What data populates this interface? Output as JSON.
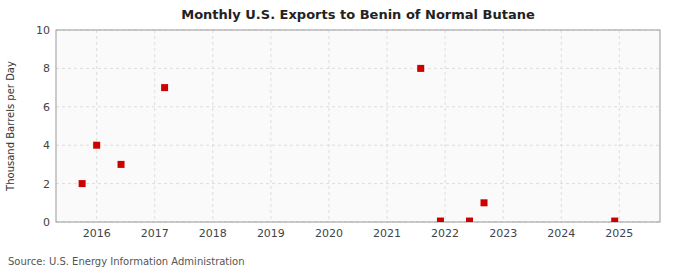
{
  "chart_data": {
    "type": "scatter",
    "title": "Monthly U.S. Exports to Benin of Normal Butane",
    "ylabel": "Thousand Barrels per Day",
    "source": "Source: U.S. Energy Information Administration",
    "x": [
      2015.75,
      2016.0,
      2016.42,
      2017.17,
      2021.58,
      2021.92,
      2022.42,
      2022.67,
      2024.92
    ],
    "values": [
      2,
      4,
      3,
      7,
      8,
      0.05,
      0.05,
      1,
      0.05
    ],
    "xlim": [
      2015.3,
      2025.7
    ],
    "ylim": [
      0,
      10
    ],
    "xticks": [
      2016,
      2017,
      2018,
      2019,
      2020,
      2021,
      2022,
      2023,
      2024,
      2025
    ],
    "yticks": [
      0,
      2,
      4,
      6,
      8,
      10
    ],
    "grid": true,
    "color": "#cc0000",
    "marker": "square"
  }
}
